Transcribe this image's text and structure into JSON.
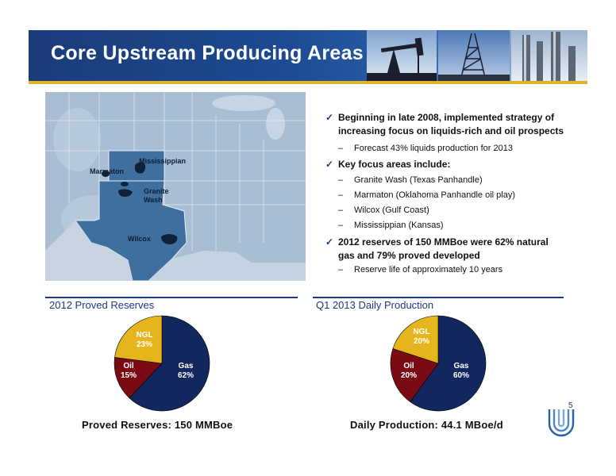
{
  "header": {
    "title": "Core Upstream Producing Areas"
  },
  "map": {
    "labels": {
      "mississippian": "Mississippian",
      "marmaton": "Marmaton",
      "granite_wash": [
        "Granite",
        "Wash"
      ],
      "wilcox": "Wilcox"
    }
  },
  "bullets": {
    "b1": [
      "Beginning in late 2008, implemented strategy of",
      "increasing focus on liquids-rich and oil prospects"
    ],
    "b1_sub": "Forecast 43% liquids production for 2013",
    "b2": "Key focus areas include:",
    "b2_subs": [
      "Granite Wash (Texas Panhandle)",
      "Marmaton (Oklahoma Panhandle oil play)",
      "Wilcox (Gulf Coast)",
      "Mississippian (Kansas)"
    ],
    "b3": [
      "2012 reserves of 150 MMBoe were 62% natural",
      "gas and 79% proved developed"
    ],
    "b3_sub": "Reserve life of approximately 10 years",
    "check": "✓",
    "dash": "–"
  },
  "reserves": {
    "section_title": "2012 Proved Reserves",
    "footer": "Proved Reserves: 150 MMBoe"
  },
  "production": {
    "section_title": "Q1 2013 Daily Production",
    "footer": "Daily Production: 44.1 MBoe/d"
  },
  "page_number": "5",
  "chart_data": [
    {
      "type": "pie",
      "slices": [
        {
          "name": "Gas",
          "label": "62%",
          "value": 62,
          "color": "#13275f"
        },
        {
          "name": "Oil",
          "label": "15%",
          "value": 15,
          "color": "#7a0b14"
        },
        {
          "name": "NGL",
          "label": "23%",
          "value": 23,
          "color": "#e6b51e"
        }
      ]
    },
    {
      "type": "pie",
      "slices": [
        {
          "name": "Gas",
          "label": "60%",
          "value": 60,
          "color": "#13275f"
        },
        {
          "name": "Oil",
          "label": "20%",
          "value": 20,
          "color": "#7a0b14"
        },
        {
          "name": "NGL",
          "label": "20%",
          "value": 20,
          "color": "#e6b51e"
        }
      ]
    }
  ]
}
